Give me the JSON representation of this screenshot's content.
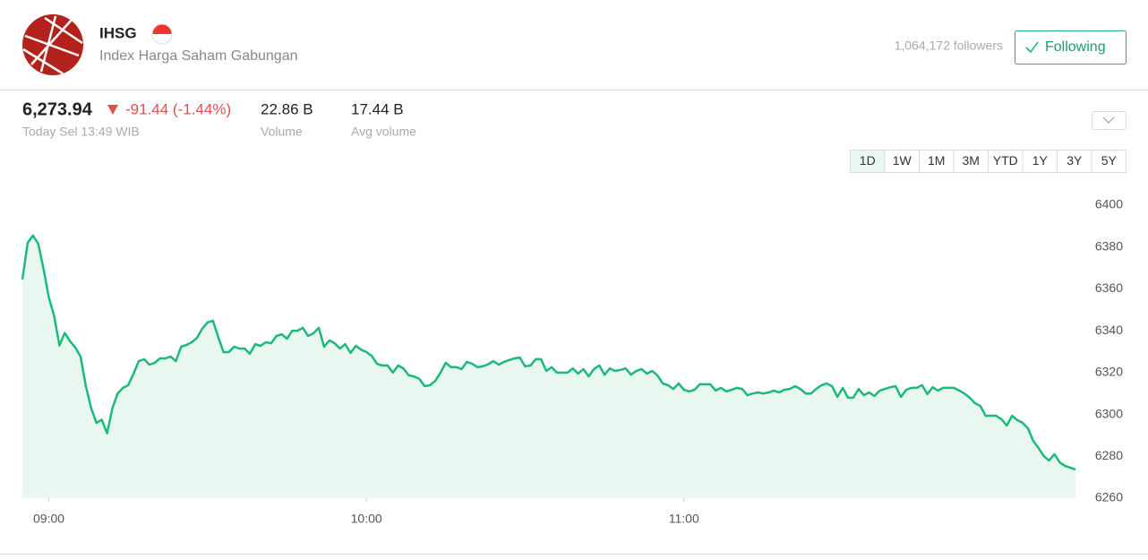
{
  "header": {
    "symbol": "IHSG",
    "name": "Index Harga Saham Gabungan",
    "followers": "1,064,172 followers",
    "follow_button": "Following"
  },
  "quote": {
    "price": "6,273.94",
    "change": "-91.44 (-1.44%)",
    "time": "Today Sel 13:49 WIB"
  },
  "stats": [
    {
      "value": "22.86 B",
      "label": "Volume"
    },
    {
      "value": "17.44 B",
      "label": "Avg volume"
    }
  ],
  "ranges": [
    "1D",
    "1W",
    "1M",
    "3M",
    "YTD",
    "1Y",
    "3Y",
    "5Y"
  ],
  "chart_data": {
    "type": "area",
    "color": "#1db97a",
    "xlim": [
      535,
      735
    ],
    "xticks": [
      {
        "value": 540,
        "label": "09:00"
      },
      {
        "value": 600,
        "label": "10:00"
      },
      {
        "value": 660,
        "label": "11:00"
      }
    ],
    "ylim": [
      6260,
      6400
    ],
    "yticks": [
      6260,
      6280,
      6300,
      6320,
      6340,
      6360,
      6380,
      6400
    ],
    "x": [
      535,
      536,
      537,
      538,
      539,
      540,
      541,
      542,
      543,
      544,
      545,
      546,
      547,
      548,
      549,
      550,
      551,
      552,
      553,
      554,
      555,
      556,
      557,
      558,
      559,
      560,
      561,
      562,
      563,
      564,
      565,
      566,
      567,
      568,
      569,
      570,
      571,
      572,
      573,
      574,
      575,
      576,
      577,
      578,
      579,
      580,
      581,
      582,
      583,
      584,
      585,
      586,
      587,
      588,
      589,
      590,
      591,
      592,
      593,
      594,
      595,
      596,
      597,
      598,
      599,
      600,
      601,
      602,
      603,
      604,
      605,
      606,
      607,
      608,
      609,
      610,
      611,
      612,
      613,
      614,
      615,
      616,
      617,
      618,
      619,
      620,
      621,
      622,
      623,
      624,
      625,
      626,
      627,
      628,
      629,
      630,
      631,
      632,
      633,
      634,
      635,
      636,
      637,
      638,
      639,
      640,
      641,
      642,
      643,
      644,
      645,
      646,
      647,
      648,
      649,
      650,
      651,
      652,
      653,
      654,
      655,
      656,
      657,
      658,
      659,
      660,
      661,
      662,
      663,
      664,
      665,
      666,
      667,
      668,
      669,
      670,
      671,
      672,
      673,
      674,
      675,
      676,
      677,
      678,
      679,
      680,
      681,
      682,
      683,
      684,
      685,
      686,
      687,
      688,
      689,
      690,
      691,
      692,
      693,
      694,
      695,
      696,
      697,
      698,
      699,
      700,
      701,
      702,
      703,
      704,
      705,
      706,
      707,
      708,
      709,
      710,
      711,
      712,
      713,
      714,
      715,
      716,
      717,
      718,
      719,
      720,
      721,
      722,
      723,
      724,
      725,
      726,
      727,
      728,
      729,
      730,
      731,
      732,
      733,
      734
    ],
    "values": [
      6364.5,
      6382,
      6385.5,
      6381.6,
      6369.6,
      6356,
      6347,
      6333,
      6339,
      6335,
      6332,
      6327.6,
      6313.5,
      6303,
      6296,
      6297.5,
      6291,
      6303,
      6310,
      6312.7,
      6314,
      6319.5,
      6325.5,
      6326.4,
      6323.8,
      6324.7,
      6326.8,
      6326.8,
      6327.7,
      6325.5,
      6332.4,
      6333.2,
      6334.5,
      6336.6,
      6341,
      6344,
      6344.8,
      6337,
      6329.8,
      6329.8,
      6332.4,
      6331.5,
      6331.5,
      6329,
      6333.6,
      6332.8,
      6334.5,
      6334,
      6337.5,
      6338.3,
      6336.2,
      6340,
      6340,
      6341.4,
      6337.5,
      6338.8,
      6341.4,
      6332.4,
      6335.4,
      6334,
      6331.5,
      6333.6,
      6329.4,
      6332.8,
      6331,
      6329.8,
      6328,
      6324.2,
      6323.4,
      6323.4,
      6320,
      6323.4,
      6322,
      6318.7,
      6318.2,
      6317,
      6313.5,
      6314,
      6316,
      6320,
      6324.7,
      6322.6,
      6322.6,
      6321.7,
      6325.1,
      6324.2,
      6322.6,
      6323,
      6324,
      6325.5,
      6323.8,
      6325.1,
      6326,
      6326.8,
      6327.2,
      6323,
      6323.4,
      6326.4,
      6326.4,
      6320.8,
      6322.6,
      6320,
      6320,
      6320,
      6322,
      6319.5,
      6321.7,
      6318.2,
      6321.7,
      6323.4,
      6319,
      6322,
      6320.8,
      6321.3,
      6322,
      6319,
      6320.8,
      6321.7,
      6319.5,
      6320.8,
      6318.7,
      6314.8,
      6314,
      6312.2,
      6314.8,
      6311.8,
      6311,
      6311.8,
      6314.4,
      6314.4,
      6314.4,
      6311.4,
      6312.7,
      6311,
      6311.8,
      6312.7,
      6312.2,
      6309.2,
      6310,
      6310.5,
      6310,
      6310.5,
      6311.4,
      6310.5,
      6311.8,
      6312.2,
      6313.5,
      6312.2,
      6310,
      6310,
      6312.2,
      6314,
      6314.8,
      6313.5,
      6308.4,
      6312.7,
      6308,
      6308,
      6312.2,
      6309.2,
      6310.5,
      6308.8,
      6311.4,
      6312.2,
      6313,
      6313.5,
      6308.4,
      6311.8,
      6312.7,
      6312.7,
      6314,
      6309.7,
      6313,
      6311.4,
      6312.7,
      6312.7,
      6312.7,
      6311.4,
      6310,
      6308,
      6305.4,
      6304.1,
      6299.4,
      6299.4,
      6299.4,
      6297.7,
      6294.7,
      6299.4,
      6297.3,
      6296,
      6293.4,
      6287.4,
      6284,
      6280.1,
      6278,
      6281,
      6277.1,
      6275.4,
      6274.6,
      6273.7
    ]
  }
}
